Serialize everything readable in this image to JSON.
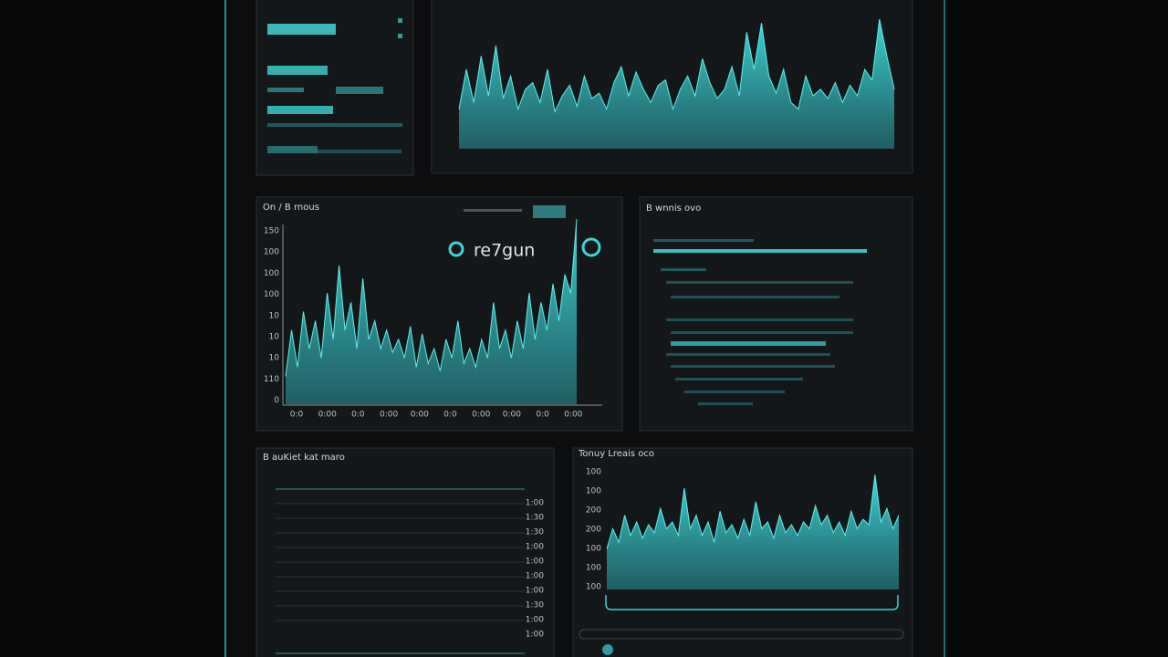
{
  "panels": [
    {
      "chart": {
        "type": "area",
        "ylim": [
          0,
          100
        ],
        "values": [
          30,
          60,
          35,
          70,
          40,
          78,
          38,
          55,
          30,
          45,
          50,
          35,
          60,
          28,
          40,
          48,
          32,
          55,
          38,
          42,
          30,
          50,
          62,
          40,
          58,
          45,
          35,
          48,
          52,
          30,
          45,
          55,
          40,
          68,
          50,
          38,
          45,
          62,
          40,
          88,
          60,
          95,
          55,
          42,
          60,
          35,
          30,
          55,
          40,
          45,
          38,
          50,
          35,
          48,
          40,
          60,
          52,
          98,
          70,
          45
        ]
      }
    },
    {
      "title": "On / B rnous",
      "logo": "re7gun",
      "y_labels": [
        "150",
        "100",
        "100",
        "100",
        "10",
        "10",
        "10",
        "110",
        "0"
      ],
      "x_labels": [
        "0:0",
        "0:00",
        "0:0",
        "0:00",
        "0:00",
        "0:0",
        "0:00",
        "0:00",
        "0:0",
        "0:00"
      ],
      "chart": {
        "type": "area",
        "ylim": [
          0,
          100
        ],
        "values": [
          15,
          40,
          20,
          50,
          30,
          45,
          25,
          60,
          35,
          75,
          40,
          55,
          30,
          68,
          35,
          45,
          30,
          40,
          28,
          35,
          25,
          42,
          20,
          38,
          22,
          30,
          18,
          35,
          25,
          45,
          22,
          30,
          20,
          35,
          25,
          55,
          30,
          40,
          25,
          45,
          30,
          60,
          35,
          55,
          40,
          65,
          45,
          70,
          60,
          100
        ]
      }
    },
    {
      "title": "B wnnis ovo"
    },
    {
      "title": "B auKiet kat maro",
      "labels": [
        "1:00",
        "1:30",
        "1:30",
        "1:00",
        "1:00",
        "1:00",
        "1:00",
        "1:30",
        "1:00",
        "1:00"
      ]
    },
    {
      "title": "Tonuy Lreais oco",
      "y_labels": [
        "100",
        "100",
        "200",
        "200",
        "100",
        "100",
        "100"
      ],
      "chart": {
        "type": "area",
        "ylim": [
          0,
          100
        ],
        "values": [
          30,
          45,
          35,
          55,
          40,
          50,
          38,
          48,
          42,
          60,
          45,
          50,
          40,
          75,
          45,
          55,
          40,
          50,
          35,
          58,
          42,
          48,
          38,
          52,
          40,
          65,
          45,
          50,
          38,
          55,
          42,
          48,
          40,
          50,
          45,
          62,
          48,
          55,
          42,
          50,
          40,
          58,
          45,
          52,
          48,
          85,
          50,
          60,
          45,
          55
        ]
      }
    }
  ]
}
